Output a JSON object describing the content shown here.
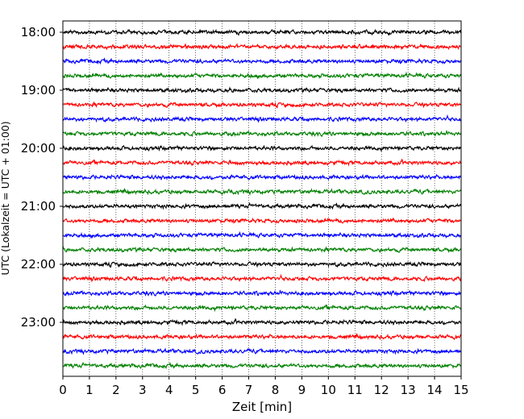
{
  "chart_data": {
    "type": "line",
    "title": "",
    "xlabel": "Zeit  [min]",
    "ylabel": "UTC (Lokalzeit = UTC + 01:00)",
    "xlim": [
      0,
      15
    ],
    "x_ticks": [
      "0",
      "1",
      "2",
      "3",
      "4",
      "5",
      "6",
      "7",
      "8",
      "9",
      "10",
      "11",
      "12",
      "13",
      "14",
      "15"
    ],
    "grid": "vertical dotted",
    "legend": "none",
    "trace_interval_min": 15,
    "start_time_utc": "18:00",
    "trace_count": 24,
    "trace_colors": [
      "#000000",
      "#ff0000",
      "#0000ff",
      "#008000"
    ],
    "y_ticks": [
      {
        "label": "18:00",
        "trace_index": 0
      },
      {
        "label": "19:00",
        "trace_index": 4
      },
      {
        "label": "20:00",
        "trace_index": 8
      },
      {
        "label": "21:00",
        "trace_index": 12
      },
      {
        "label": "22:00",
        "trace_index": 16
      },
      {
        "label": "23:00",
        "trace_index": 20
      }
    ]
  }
}
